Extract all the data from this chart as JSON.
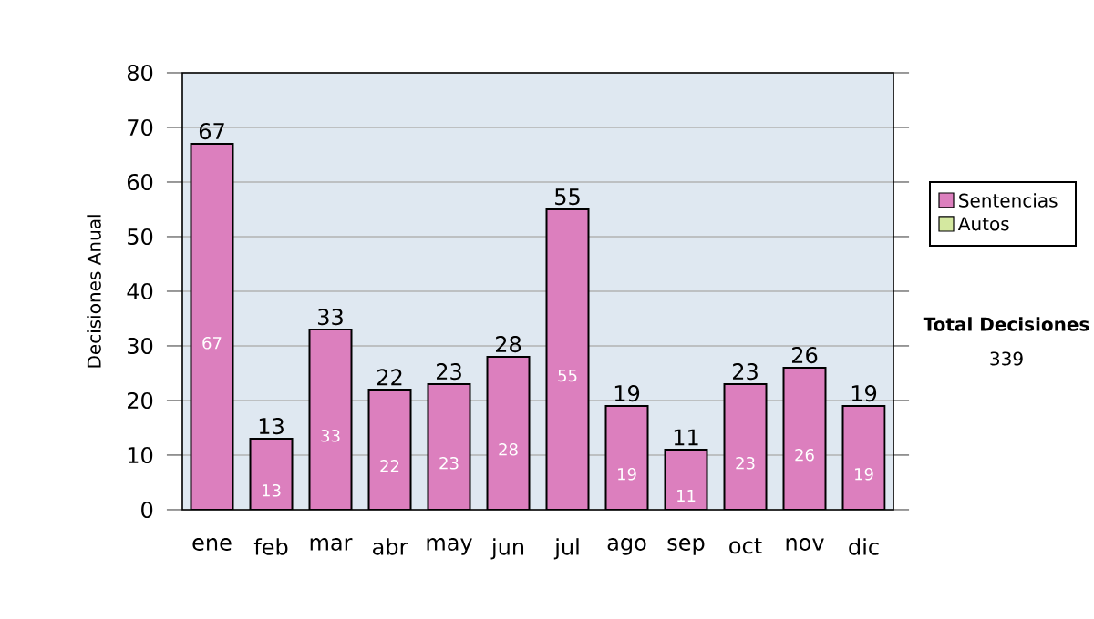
{
  "chart_data": {
    "type": "bar",
    "ylabel": "Decisiones Anual",
    "categories": [
      "ene",
      "feb",
      "mar",
      "abr",
      "may",
      "jun",
      "jul",
      "ago",
      "sep",
      "oct",
      "nov",
      "dic"
    ],
    "series": [
      {
        "name": "Sentencias",
        "color": "#dc7fbe",
        "values": [
          67,
          13,
          33,
          22,
          23,
          28,
          55,
          19,
          11,
          23,
          26,
          19
        ]
      },
      {
        "name": "Autos",
        "color": "#d4e8a0",
        "values": [
          null,
          null,
          null,
          null,
          null,
          null,
          null,
          null,
          null,
          null,
          null,
          null
        ]
      }
    ],
    "stacked": true,
    "totals": [
      "67",
      "13",
      "33",
      "22",
      "23",
      "28",
      "55",
      "19",
      "11",
      "23",
      "26",
      "19"
    ],
    "data_labels": true,
    "ylim": [
      0,
      80
    ],
    "yticks": [
      0,
      10,
      20,
      30,
      40,
      50,
      60,
      70,
      80
    ],
    "grid": "y",
    "legend": "right",
    "annotations": [
      "Total Decisiones",
      "339"
    ]
  }
}
